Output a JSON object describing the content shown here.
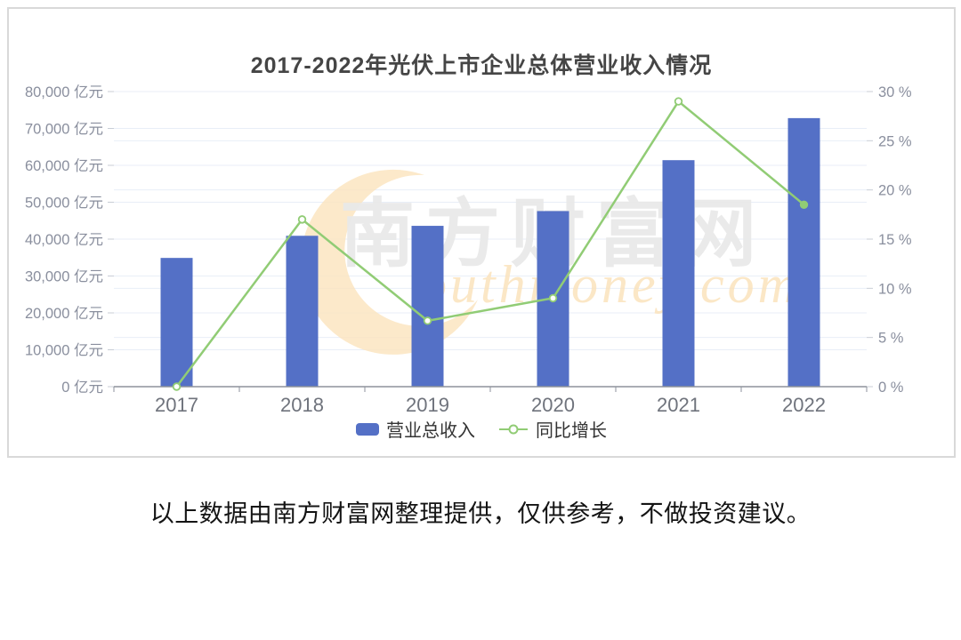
{
  "chart_data": {
    "type": "combo-bar-line",
    "title": "2017-2022年光伏上市企业总体营业收入情况",
    "categories": [
      "2017",
      "2018",
      "2019",
      "2020",
      "2021",
      "2022"
    ],
    "series": [
      {
        "name": "营业总收入",
        "type": "bar",
        "unit": "亿元",
        "axis": "left",
        "color": "#5470c6",
        "values": [
          34900,
          40900,
          43600,
          47600,
          61400,
          72800
        ]
      },
      {
        "name": "同比增长",
        "type": "line",
        "unit": "%",
        "axis": "right",
        "color": "#91cc75",
        "values": [
          0,
          17,
          6.7,
          9,
          29,
          18.5
        ]
      }
    ],
    "y_left": {
      "min": 0,
      "max": 80000,
      "step": 10000,
      "labels": [
        "80,000 亿元",
        "70,000 亿元",
        "60,000 亿元",
        "50,000 亿元",
        "40,000 亿元",
        "30,000 亿元",
        "20,000 亿元",
        "10,000 亿元",
        "0 亿元"
      ]
    },
    "y_right": {
      "min": 0,
      "max": 30,
      "step": 5,
      "labels": [
        "30 %",
        "25 %",
        "20 %",
        "15 %",
        "10 %",
        "5 %",
        "0 %"
      ]
    },
    "legend": [
      "营业总收入",
      "同比增长"
    ],
    "legend_position": "bottom",
    "grid": true
  },
  "watermark": {
    "cn": "南方财富网",
    "en": "outhmoney.com"
  },
  "footer": {
    "note": "以上数据由南方财富网整理提供，仅供参考，不做投资建议。"
  },
  "colors": {
    "bar": "#5470c6",
    "line": "#91cc75",
    "grid": "#e8eef7",
    "axis": "#8d929c",
    "tick": "#c8cdd6",
    "axis_label": "#8a8f9e",
    "x_label": "#6f737c",
    "title": "#454545",
    "legend_text": "#333333",
    "border": "#d9d9d9",
    "watermark_cn": "#e9e9e9",
    "watermark_orange": "#fbe3bd",
    "note": "#141414",
    "background": "#ffffff"
  }
}
